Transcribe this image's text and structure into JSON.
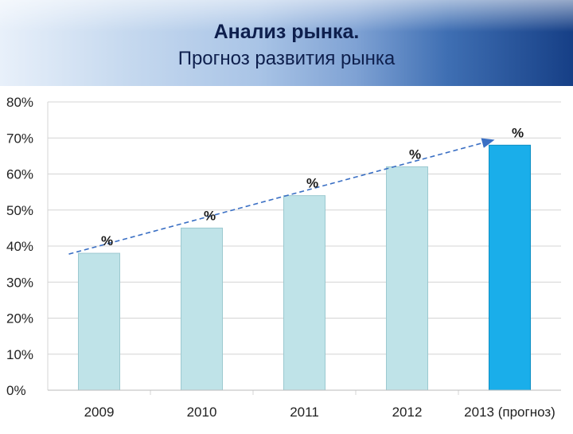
{
  "header": {
    "title": "Анализ рынка.",
    "subtitle": "Прогноз развития рынка"
  },
  "colors": {
    "bar": "#bfe3e8",
    "bar_stroke": "#9cc9d0",
    "bar_forecast": "#1aaeea",
    "bar_forecast_stroke": "#0b8ec4",
    "trend": "#3a6fc4",
    "grid": "#d4d4d4"
  },
  "chart_data": {
    "type": "bar",
    "title": "",
    "xlabel": "",
    "ylabel": "",
    "categories": [
      "2009",
      "2010",
      "2011",
      "2012",
      "2013 (прогноз)"
    ],
    "values": [
      38,
      45,
      54,
      62,
      68
    ],
    "data_labels": [
      "%",
      "%",
      "%",
      "%",
      "%"
    ],
    "forecast_index": 4,
    "ylim": [
      0,
      80
    ],
    "yticks": [
      "0%",
      "10%",
      "20%",
      "30%",
      "40%",
      "50%",
      "60%",
      "70%",
      "80%"
    ],
    "grid": true,
    "legend": "none",
    "trendline": {
      "type": "dashed-arrow",
      "from_index": 0,
      "to_index": 4
    }
  }
}
